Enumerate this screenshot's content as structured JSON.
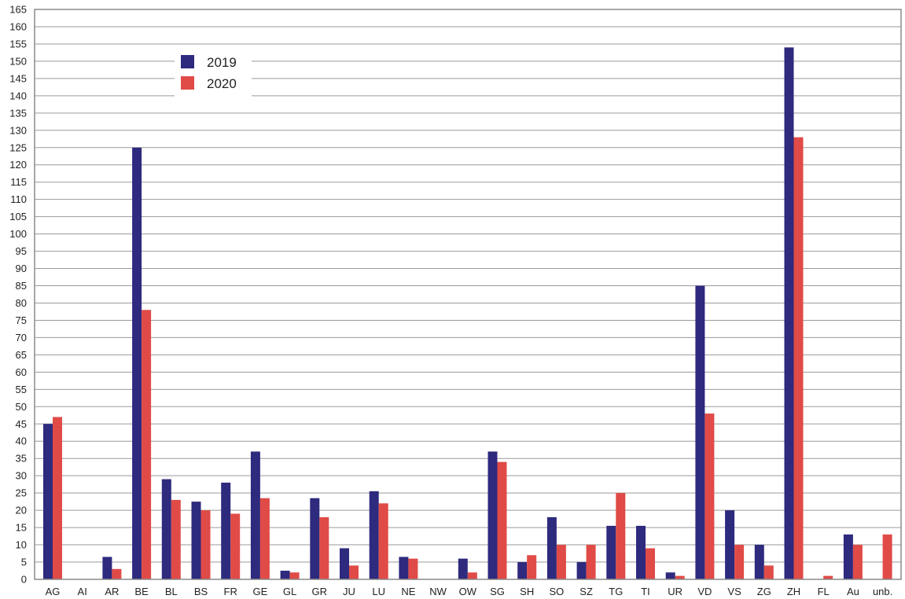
{
  "chart_data": {
    "type": "bar",
    "title": "",
    "xlabel": "",
    "ylabel": "",
    "ylim": [
      0,
      165
    ],
    "y_ticks": [
      0,
      5,
      10,
      15,
      20,
      25,
      30,
      35,
      40,
      45,
      50,
      55,
      60,
      65,
      70,
      75,
      80,
      85,
      90,
      95,
      100,
      105,
      110,
      115,
      120,
      125,
      130,
      135,
      140,
      145,
      150,
      155,
      160,
      165
    ],
    "grid": true,
    "legend_position": "top-left",
    "categories": [
      "AG",
      "AI",
      "AR",
      "BE",
      "BL",
      "BS",
      "FR",
      "GE",
      "GL",
      "GR",
      "JU",
      "LU",
      "NE",
      "NW",
      "OW",
      "SG",
      "SH",
      "SO",
      "SZ",
      "TG",
      "TI",
      "UR",
      "VD",
      "VS",
      "ZG",
      "ZH",
      "FL",
      "Au",
      "unb."
    ],
    "series": [
      {
        "name": "2019",
        "color": "#2e2a7e",
        "values": [
          45,
          0,
          6.5,
          125,
          29,
          22.5,
          28,
          37,
          2.5,
          23.5,
          9,
          25.5,
          6.5,
          0,
          6,
          37,
          5,
          18,
          5,
          15.5,
          15.5,
          2,
          85,
          20,
          10,
          154,
          0,
          13,
          0
        ]
      },
      {
        "name": "2020",
        "color": "#e04b47",
        "values": [
          47,
          0,
          3,
          78,
          23,
          20,
          19,
          23.5,
          2,
          18,
          4,
          22,
          6,
          0,
          2,
          34,
          7,
          10,
          10,
          25,
          9,
          1,
          48,
          10,
          4,
          128,
          1,
          10,
          13
        ]
      }
    ]
  }
}
